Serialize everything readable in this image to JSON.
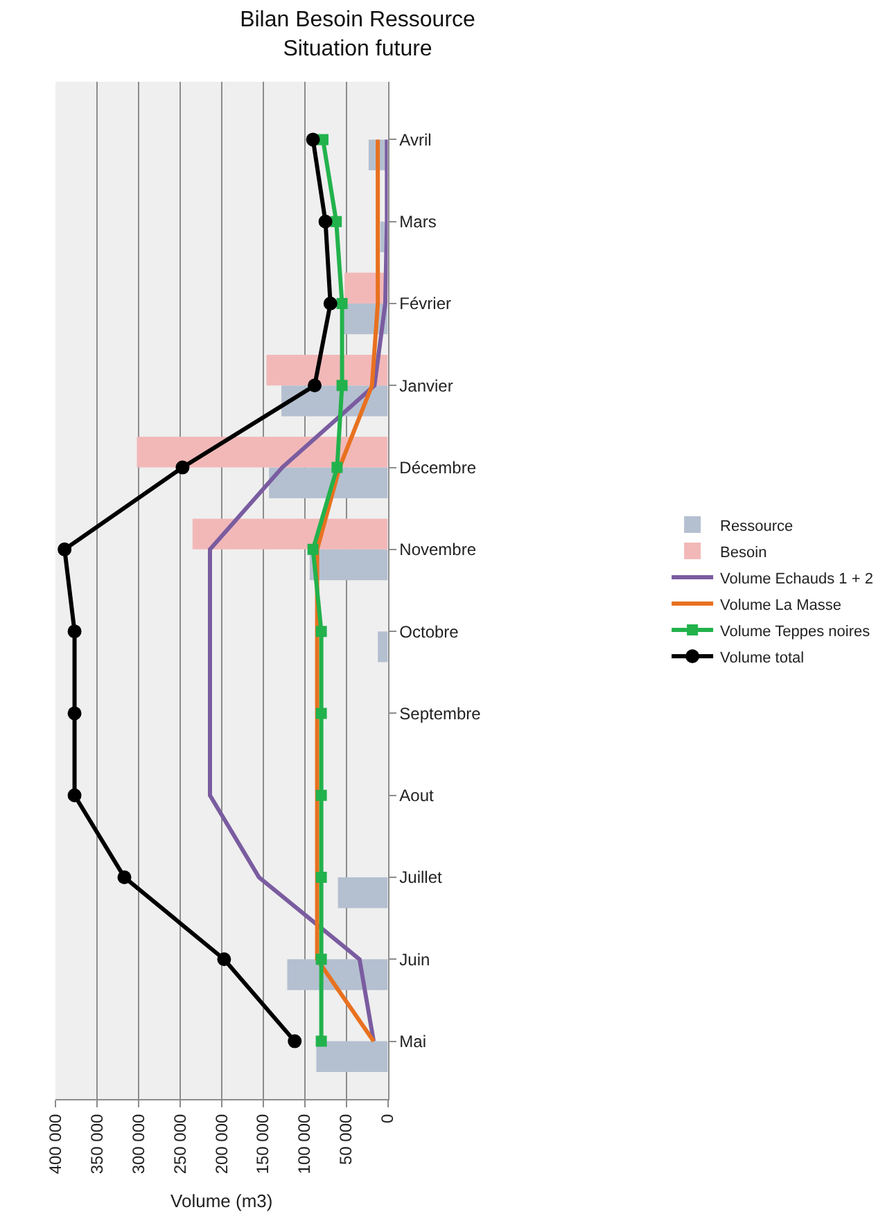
{
  "chart_data": {
    "type": "bar",
    "orientation": "horizontal",
    "title": "Bilan Besoin Ressource\nSituation future",
    "xlabel": "Volume (m3)",
    "categories": [
      "Avril",
      "Mars",
      "Février",
      "Janvier",
      "Décembre",
      "Novembre",
      "Octobre",
      "Septembre",
      "Aout",
      "Juillet",
      "Juin",
      "Mai"
    ],
    "series": [
      {
        "name": "Ressource",
        "color": "#b4c0d0",
        "values": [
          23000,
          9000,
          54000,
          128000,
          143000,
          94000,
          12000,
          0,
          0,
          60000,
          121000,
          86000
        ]
      },
      {
        "name": "Besoin",
        "color": "#f2b8b8",
        "values": [
          0,
          0,
          52000,
          146000,
          302000,
          235000,
          0,
          0,
          0,
          0,
          0,
          0
        ]
      },
      {
        "name": "Volume Echauds 1 + 2",
        "type": "line",
        "color": "#7a5ca0",
        "marker": "none",
        "values": [
          1000,
          1000,
          3000,
          16000,
          127000,
          214000,
          214000,
          214000,
          214000,
          155000,
          34000,
          17000
        ]
      },
      {
        "name": "Volume La Masse",
        "type": "line",
        "color": "#e8711f",
        "marker": "none",
        "values": [
          12000,
          12000,
          12000,
          19000,
          58000,
          85000,
          85000,
          85000,
          85000,
          85000,
          85000,
          17000
        ]
      },
      {
        "name": "Volume Teppes noires",
        "type": "line",
        "color": "#22b24c",
        "marker": "square",
        "values": [
          78000,
          62000,
          55000,
          55000,
          61000,
          90000,
          80000,
          80000,
          80000,
          80000,
          80000,
          80000
        ]
      },
      {
        "name": "Volume total",
        "type": "line",
        "color": "#000000",
        "marker": "circle",
        "values": [
          90000,
          75000,
          69000,
          88000,
          247000,
          389000,
          377000,
          377000,
          377000,
          317000,
          197000,
          112000
        ]
      }
    ],
    "xlim": [
      400000,
      0
    ],
    "xticks": [
      {
        "value": 400000,
        "label": "400 000"
      },
      {
        "value": 350000,
        "label": "350 000"
      },
      {
        "value": 300000,
        "label": "300 000"
      },
      {
        "value": 250000,
        "label": "250 000"
      },
      {
        "value": 200000,
        "label": "200 000"
      },
      {
        "value": 150000,
        "label": "150 000"
      },
      {
        "value": 100000,
        "label": "100 000"
      },
      {
        "value": 50000,
        "label": "50 000"
      },
      0
    ],
    "grid": "x",
    "legend": "right",
    "line_style": "solid"
  }
}
